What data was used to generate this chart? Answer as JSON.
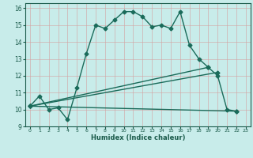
{
  "title": "",
  "xlabel": "Humidex (Indice chaleur)",
  "xlim": [
    -0.5,
    23.5
  ],
  "ylim": [
    9,
    16.3
  ],
  "yticks": [
    9,
    10,
    11,
    12,
    13,
    14,
    15,
    16
  ],
  "xticks": [
    0,
    1,
    2,
    3,
    4,
    5,
    6,
    7,
    8,
    9,
    10,
    11,
    12,
    13,
    14,
    15,
    16,
    17,
    18,
    19,
    20,
    21,
    22,
    23
  ],
  "bg_color": "#c8ecea",
  "line_color": "#1a6b5a",
  "line1_x": [
    0,
    1,
    2,
    3,
    4,
    5,
    6,
    7,
    8,
    9,
    10,
    11,
    12,
    13,
    14,
    15,
    16,
    17,
    18,
    19,
    20,
    21,
    22
  ],
  "line1_y": [
    10.2,
    10.8,
    10.0,
    10.1,
    9.4,
    11.3,
    13.3,
    15.0,
    14.8,
    15.3,
    15.8,
    15.8,
    15.5,
    14.9,
    15.0,
    14.8,
    15.8,
    13.8,
    13.0,
    12.5,
    12.0,
    10.0,
    9.9
  ],
  "line2_x": [
    0,
    22
  ],
  "line2_y": [
    10.2,
    9.9
  ],
  "line3_x": [
    0,
    19
  ],
  "line3_y": [
    10.2,
    12.5
  ],
  "line4_x": [
    0,
    20
  ],
  "line4_y": [
    10.2,
    12.2
  ],
  "markersize": 2.5,
  "linewidth": 1.0
}
